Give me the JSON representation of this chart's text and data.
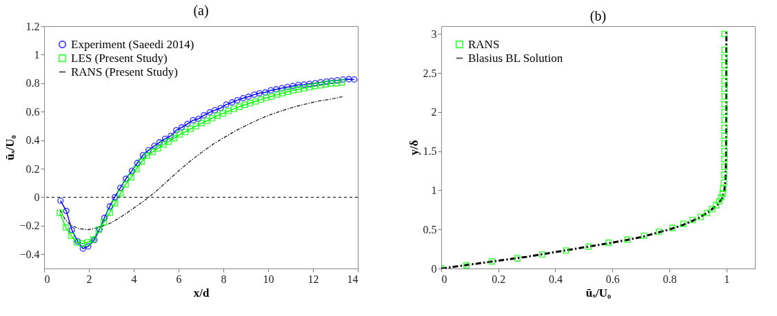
{
  "chart_data": [
    {
      "type": "line",
      "title": "(a)",
      "xlabel": "x/d",
      "ylabel": "ūₓ/U₀",
      "xlim": [
        0,
        14
      ],
      "xticks": [
        0,
        2,
        4,
        6,
        8,
        10,
        12,
        14
      ],
      "ylim": [
        -0.5,
        1.2
      ],
      "yticks": [
        -0.4,
        -0.2,
        0,
        0.2,
        0.4,
        0.6,
        0.8,
        1,
        1.2
      ],
      "grid": false,
      "legend": "top left",
      "ref_lines": [
        {
          "axis": "y",
          "value": 0,
          "line_style": "dashed",
          "color": "#000000"
        }
      ],
      "series": [
        {
          "name": "Experiment (Saeedi 2014)",
          "color": "#0000ff",
          "marker": "circle",
          "line_style": "solid",
          "x": [
            0.73,
            0.99,
            1.24,
            1.5,
            1.73,
            1.97,
            2.24,
            2.47,
            2.69,
            2.93,
            3.15,
            3.4,
            3.65,
            3.92,
            4.16,
            4.41,
            4.66,
            4.92,
            5.15,
            5.4,
            5.65,
            5.9,
            6.14,
            6.4,
            6.65,
            6.89,
            7.13,
            7.39,
            7.62,
            7.88,
            8.13,
            8.39,
            8.62,
            8.88,
            9.12,
            9.38,
            9.61,
            9.87,
            10.12,
            10.36,
            10.61,
            10.86,
            11.1,
            11.35,
            11.6,
            11.84,
            12.1,
            12.34,
            12.6,
            12.83,
            13.08,
            13.34,
            13.6,
            13.84
          ],
          "values": [
            -0.024,
            -0.096,
            -0.23,
            -0.31,
            -0.36,
            -0.345,
            -0.3,
            -0.225,
            -0.145,
            -0.064,
            0.0,
            0.066,
            0.13,
            0.185,
            0.24,
            0.295,
            0.33,
            0.36,
            0.385,
            0.41,
            0.43,
            0.47,
            0.49,
            0.515,
            0.54,
            0.55,
            0.575,
            0.595,
            0.61,
            0.625,
            0.65,
            0.665,
            0.68,
            0.695,
            0.705,
            0.72,
            0.73,
            0.735,
            0.75,
            0.757,
            0.765,
            0.773,
            0.78,
            0.788,
            0.79,
            0.795,
            0.8,
            0.807,
            0.812,
            0.817,
            0.82,
            0.826,
            0.828,
            0.826
          ]
        },
        {
          "name": "LES (Present Study)",
          "color": "#00ff00",
          "marker": "square",
          "line_style": "solid",
          "x": [
            0.7,
            0.97,
            1.21,
            1.45,
            1.7,
            1.94,
            2.18,
            2.44,
            2.67,
            2.93,
            3.16,
            3.41,
            3.64,
            3.88,
            4.12,
            4.36,
            4.59,
            4.84,
            5.08,
            5.33,
            5.56,
            5.81,
            6.05,
            6.3,
            6.53,
            6.78,
            7.02,
            7.27,
            7.5,
            7.74,
            7.98,
            8.23,
            8.47,
            8.71,
            8.95,
            9.19,
            9.43,
            9.67,
            9.92,
            10.15,
            10.4,
            10.63,
            10.88,
            11.12,
            11.36,
            11.6,
            11.84,
            12.08,
            12.33,
            12.57,
            12.81,
            13.05,
            13.29
          ],
          "values": [
            -0.11,
            -0.212,
            -0.27,
            -0.317,
            -0.325,
            -0.317,
            -0.297,
            -0.228,
            -0.175,
            -0.108,
            -0.043,
            0.026,
            0.09,
            0.14,
            0.198,
            0.25,
            0.29,
            0.318,
            0.342,
            0.37,
            0.39,
            0.415,
            0.44,
            0.458,
            0.48,
            0.498,
            0.52,
            0.535,
            0.555,
            0.572,
            0.587,
            0.605,
            0.62,
            0.635,
            0.648,
            0.66,
            0.672,
            0.685,
            0.698,
            0.707,
            0.72,
            0.73,
            0.74,
            0.75,
            0.757,
            0.765,
            0.772,
            0.78,
            0.785,
            0.793,
            0.798,
            0.8,
            0.805
          ]
        },
        {
          "name": "RANS (Present Study)",
          "color": "#000000",
          "marker": "none",
          "line_style": "dashed",
          "x": [
            0.71,
            0.94,
            1.19,
            1.55,
            1.96,
            2.47,
            2.98,
            3.49,
            4.0,
            4.51,
            5.02,
            5.53,
            6.04,
            6.55,
            7.06,
            7.57,
            8.08,
            8.59,
            9.1,
            9.61,
            10.12,
            10.63,
            11.14,
            11.65,
            12.16,
            12.78,
            13.31
          ],
          "values": [
            -0.09,
            -0.156,
            -0.196,
            -0.22,
            -0.228,
            -0.212,
            -0.18,
            -0.132,
            -0.076,
            -0.02,
            0.045,
            0.117,
            0.19,
            0.257,
            0.318,
            0.375,
            0.423,
            0.47,
            0.51,
            0.548,
            0.58,
            0.608,
            0.632,
            0.653,
            0.672,
            0.688,
            0.705
          ]
        }
      ]
    },
    {
      "type": "line",
      "title": "(b)",
      "xlabel": "ūₓ/U₀",
      "ylabel": "y/δ",
      "xlim": [
        0,
        1.1
      ],
      "xticks": [
        0,
        0.2,
        0.4,
        0.6,
        0.8,
        1
      ],
      "ylim": [
        0,
        3.1
      ],
      "yticks": [
        0,
        0.5,
        1,
        1.5,
        2,
        2.5,
        3
      ],
      "grid": false,
      "legend": "top left",
      "series": [
        {
          "name": "RANS",
          "type": "scatter",
          "color": "#00ff00",
          "marker": "square",
          "x": [
            0,
            0.088,
            0.178,
            0.267,
            0.354,
            0.438,
            0.517,
            0.587,
            0.653,
            0.711,
            0.764,
            0.811,
            0.849,
            0.881,
            0.91,
            0.932,
            0.95,
            0.964,
            0.975,
            0.982,
            0.987,
            0.989,
            0.991,
            0.992,
            0.993,
            0.993,
            0.993,
            0.993,
            0.993,
            0.993,
            0.993,
            0.993,
            0.993,
            0.993,
            0.993,
            0.993,
            0.993,
            0.993,
            0.993,
            0.993,
            0.993
          ],
          "values": [
            0,
            0.04,
            0.09,
            0.13,
            0.18,
            0.23,
            0.28,
            0.33,
            0.37,
            0.42,
            0.47,
            0.52,
            0.57,
            0.62,
            0.66,
            0.71,
            0.76,
            0.81,
            0.86,
            0.91,
            0.96,
            1.02,
            1.1,
            1.2,
            1.3,
            1.4,
            1.5,
            1.6,
            1.7,
            1.8,
            1.9,
            2.0,
            2.1,
            2.2,
            2.3,
            2.4,
            2.5,
            2.6,
            2.7,
            2.8,
            3.0
          ]
        },
        {
          "name": "Blasius BL Solution",
          "color": "#000000",
          "marker": "none",
          "line_style": "dashed",
          "x": [
            0,
            0.1,
            0.2,
            0.3,
            0.4,
            0.5,
            0.6,
            0.7,
            0.8,
            0.85,
            0.9,
            0.94,
            0.97,
            0.985,
            0.993,
            0.997,
            0.999,
            1.0,
            1.0
          ],
          "values": [
            0,
            0.05,
            0.1,
            0.15,
            0.21,
            0.27,
            0.33,
            0.4,
            0.5,
            0.56,
            0.64,
            0.73,
            0.82,
            0.9,
            1.0,
            1.15,
            1.4,
            2.0,
            3.05
          ]
        }
      ]
    }
  ]
}
